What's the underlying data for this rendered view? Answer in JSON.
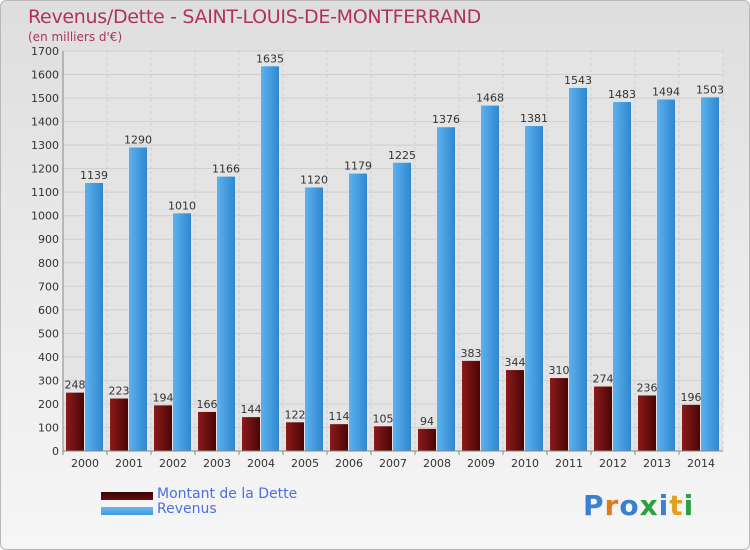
{
  "header": {
    "title": "Revenus/Dette - SAINT-LOUIS-DE-MONTFERRAND",
    "subtitle": "(en milliers d'€)"
  },
  "colors": {
    "title": "#b03060",
    "dette": "#7a1010",
    "revenus": "#3d9be0",
    "legend_text": "#4a6fe0"
  },
  "legend": {
    "items": [
      {
        "label": "Montant de la Dette",
        "color": "#6a0d0d"
      },
      {
        "label": "Revenus",
        "color": "#3d9be0"
      }
    ]
  },
  "logo": {
    "text": "Proxiti"
  },
  "chart_data": {
    "type": "bar",
    "categories": [
      "2000",
      "2001",
      "2002",
      "2003",
      "2004",
      "2005",
      "2006",
      "2007",
      "2008",
      "2009",
      "2010",
      "2011",
      "2012",
      "2013",
      "2014"
    ],
    "series": [
      {
        "name": "Montant de la Dette",
        "values": [
          248,
          223,
          194,
          166,
          144,
          122,
          114,
          105,
          94,
          383,
          344,
          310,
          274,
          236,
          196
        ]
      },
      {
        "name": "Revenus",
        "values": [
          1139,
          1290,
          1010,
          1166,
          1635,
          1120,
          1179,
          1225,
          1376,
          1468,
          1381,
          1543,
          1483,
          1494,
          1503
        ]
      }
    ],
    "yticks": [
      0,
      100,
      200,
      300,
      400,
      500,
      600,
      700,
      800,
      900,
      1000,
      1100,
      1200,
      1300,
      1400,
      1500,
      1600,
      1700
    ],
    "ylim": [
      0,
      1700
    ],
    "grid": true,
    "legend_position": "bottom-left"
  }
}
